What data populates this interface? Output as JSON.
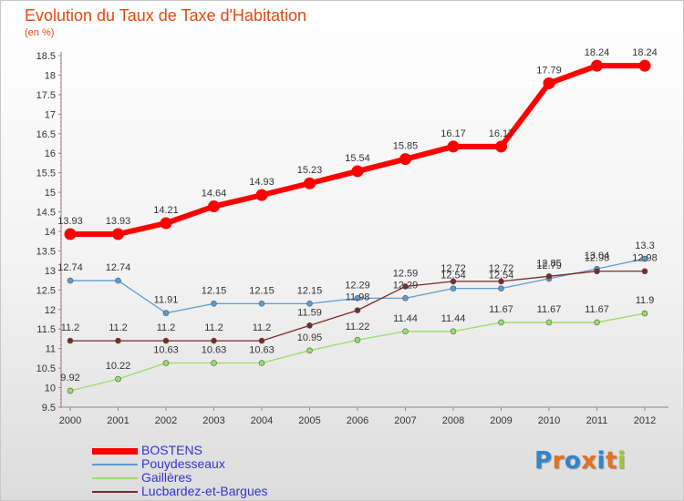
{
  "header": {
    "title": "Evolution du Taux de Taxe d'Habitation",
    "unit": "(en %)"
  },
  "brand": {
    "letters": [
      "P",
      "r",
      "o",
      "x",
      "i",
      "t",
      "i"
    ],
    "colors": [
      "#2f86c8",
      "#e8701c",
      "#2f86c8",
      "#e8701c",
      "#2f86c8",
      "#e8701c",
      "#9ec83c"
    ]
  },
  "chart_data": {
    "type": "line",
    "title": "Evolution du Taux de Taxe d'Habitation",
    "ylabel": "(en %)",
    "xlabel": "",
    "x": [
      "2000",
      "2001",
      "2002",
      "2003",
      "2004",
      "2005",
      "2006",
      "2007",
      "2008",
      "2009",
      "2010",
      "2011",
      "2012"
    ],
    "ylim": [
      9.5,
      18.5
    ],
    "yticks": [
      "9.5",
      "10",
      "10.5",
      "11",
      "11.5",
      "12",
      "12.5",
      "13",
      "13.5",
      "14",
      "14.5",
      "15",
      "15.5",
      "16",
      "16.5",
      "17",
      "17.5",
      "18",
      "18.5"
    ],
    "grid": false,
    "legend": "bottom-left",
    "series": [
      {
        "name": "BOSTENS",
        "color": "#ff0000",
        "values": [
          13.93,
          13.93,
          14.21,
          14.64,
          14.93,
          15.23,
          15.54,
          15.85,
          16.17,
          16.17,
          17.79,
          18.24,
          18.24
        ],
        "labels": [
          "13.93",
          "13.93",
          "14.21",
          "14.64",
          "14.93",
          "15.23",
          "15.54",
          "15.85",
          "16.17",
          "16.17",
          "17.79",
          "18.24",
          "18.24"
        ]
      },
      {
        "name": "Pouydesseaux",
        "color": "#5b9bd5",
        "values": [
          12.74,
          12.74,
          11.91,
          12.15,
          12.15,
          12.15,
          12.29,
          12.29,
          12.54,
          12.54,
          12.79,
          13.04,
          13.3
        ],
        "labels": [
          "12.74",
          "12.74",
          "11.91",
          "12.15",
          "12.15",
          "12.15",
          "12.29",
          "12.29",
          "12.54",
          "12.54",
          "12.79",
          "13.04",
          "13.3"
        ]
      },
      {
        "name": "Gaillères",
        "color": "#99dd66",
        "values": [
          9.92,
          10.22,
          10.63,
          10.63,
          10.63,
          10.95,
          11.22,
          11.44,
          11.44,
          11.67,
          11.67,
          11.67,
          11.9
        ],
        "labels": [
          "9.92",
          "10.22",
          "10.63",
          "10.63",
          "10.63",
          "10.95",
          "11.22",
          "11.44",
          "11.44",
          "11.67",
          "11.67",
          "11.67",
          "11.9"
        ]
      },
      {
        "name": "Lucbardez-et-Bargues",
        "color": "#7a2a2a",
        "values": [
          11.2,
          11.2,
          11.2,
          11.2,
          11.2,
          11.59,
          11.98,
          12.59,
          12.72,
          12.72,
          12.85,
          12.98,
          12.98
        ],
        "labels": [
          "11.2",
          "11.2",
          "11.2",
          "11.2",
          "11.2",
          "11.59",
          "11.98",
          "12.59",
          "12.72",
          "12.72",
          "12.85",
          "12.98",
          "12.98"
        ]
      }
    ]
  }
}
